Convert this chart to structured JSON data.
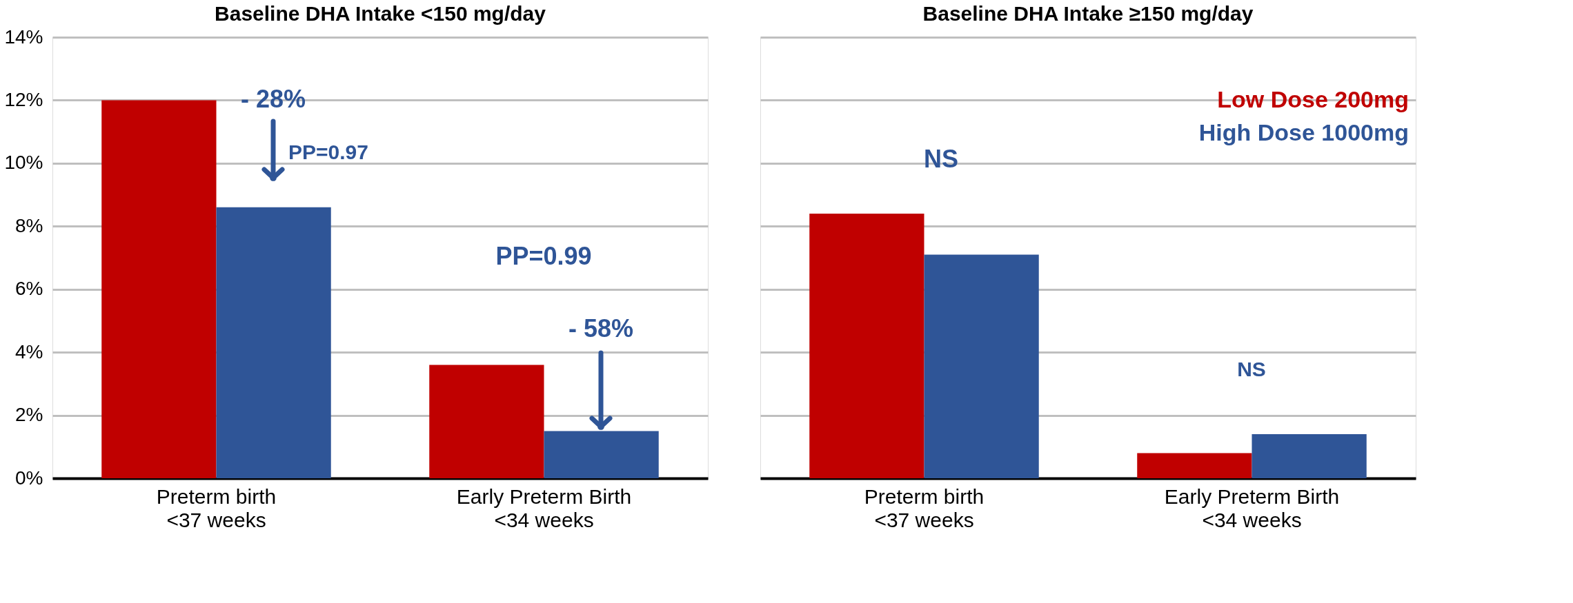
{
  "chart_data": [
    {
      "type": "bar",
      "title": "Baseline DHA Intake  <150 mg/day",
      "categories": [
        "Preterm birth\n<37 weeks",
        "Early Preterm Birth\n<34 weeks"
      ],
      "series": [
        {
          "color": "#c00000",
          "values": [
            12.0,
            3.6
          ]
        },
        {
          "color": "#2f5597",
          "values": [
            8.6,
            1.5
          ]
        }
      ],
      "ylim": [
        0,
        14
      ],
      "yticks": [
        {
          "value": 0,
          "label": "0%"
        },
        {
          "value": 2,
          "label": "2%"
        },
        {
          "value": 4,
          "label": "4%"
        },
        {
          "value": 6,
          "label": "6%"
        },
        {
          "value": 8,
          "label": "8%"
        },
        {
          "value": 10,
          "label": "10%"
        },
        {
          "value": 12,
          "label": "12%"
        },
        {
          "value": 14,
          "label": "14%"
        }
      ],
      "grid": "y",
      "annotations": [
        "- 28%",
        "PP=0.97",
        "PP=0.99",
        "- 58%"
      ]
    },
    {
      "type": "bar",
      "title": "Baseline DHA Intake ≥150 mg/day",
      "categories": [
        "Preterm birth\n<37 weeks",
        "Early Preterm Birth\n<34 weeks"
      ],
      "series": [
        {
          "name": "Low Dose 200mg",
          "color": "#c00000",
          "values": [
            8.4,
            0.8
          ]
        },
        {
          "name": "High Dose 1000mg",
          "color": "#2f5597",
          "values": [
            7.1,
            1.4
          ]
        }
      ],
      "ylim": [
        0,
        14
      ],
      "yticks": [
        0,
        2,
        4,
        6,
        8,
        10,
        12,
        14
      ],
      "tick_labels": "x",
      "grid": "y",
      "annotations": [
        "NS",
        "NS"
      ]
    }
  ]
}
